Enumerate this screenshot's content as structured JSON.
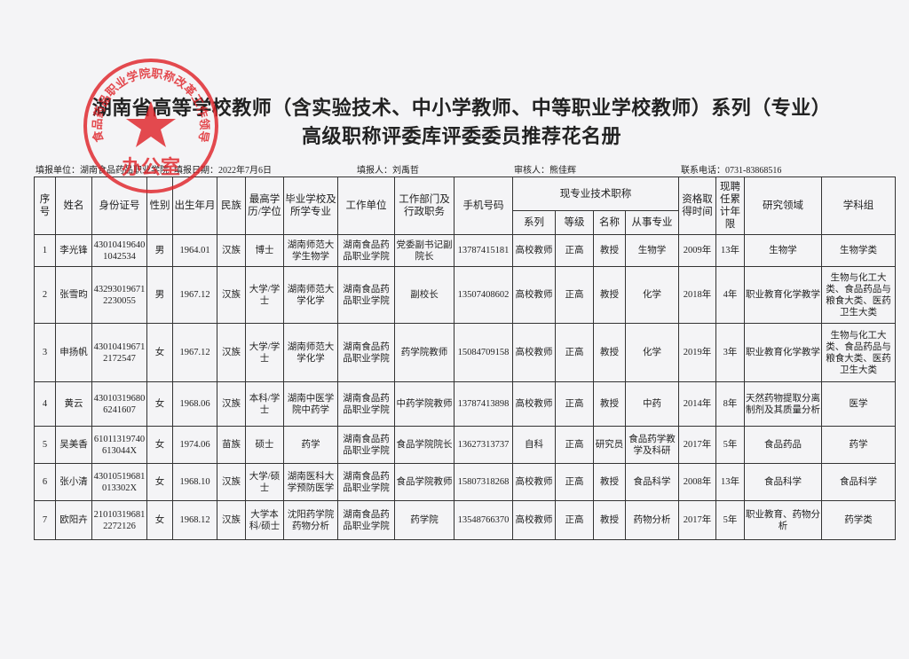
{
  "header": {
    "title_line1": "湖南省高等学校教师（含实验技术、中小学教师、中等职业学校教师）系列（专业）",
    "title_line2": "高级职称评委库评委委员推荐花名册"
  },
  "stamp": {
    "ring": "湖南食品药品职业学院职称改革工作领导小组",
    "center": "办公室"
  },
  "info": {
    "unit": "填报单位：湖南食品药品职业学院",
    "date": "填报日期：2022年7月6日",
    "filler": "填报人：刘禹哲",
    "reviewer": "审核人：熊佳辉",
    "phone": "联系电话：0731-83868516"
  },
  "table": {
    "columns": [
      "序号",
      "姓名",
      "身份证号",
      "性别",
      "出生年月",
      "民族",
      "最高学历/学位",
      "毕业学校及所学专业",
      "工作单位",
      "工作部门及行政职务",
      "手机号码",
      "现专业技术职称",
      "资格取得时间",
      "现聘任累计年限",
      "研究领域",
      "学科组"
    ],
    "sub_columns": [
      "系列",
      "等级",
      "名称",
      "从事专业"
    ],
    "rows": [
      [
        "1",
        "李光锋",
        "430104196401042534",
        "男",
        "1964.01",
        "汉族",
        "博士",
        "湖南师范大学生物学",
        "湖南食品药品职业学院",
        "党委副书记副院长",
        "13787415181",
        "高校教师",
        "正高",
        "教授",
        "生物学",
        "2009年",
        "13年",
        "生物学",
        "生物学类"
      ],
      [
        "2",
        "张雪昀",
        "432930196712230055",
        "男",
        "1967.12",
        "汉族",
        "大学/学士",
        "湖南师范大学化学",
        "湖南食品药品职业学院",
        "副校长",
        "13507408602",
        "高校教师",
        "正高",
        "教授",
        "化学",
        "2018年",
        "4年",
        "职业教育化学教学",
        "生物与化工大类、食品药品与粮食大类、医药卫生大类"
      ],
      [
        "3",
        "申扬帆",
        "430104196712172547",
        "女",
        "1967.12",
        "汉族",
        "大学/学士",
        "湖南师范大学化学",
        "湖南食品药品职业学院",
        "药学院教师",
        "15084709158",
        "高校教师",
        "正高",
        "教授",
        "化学",
        "2019年",
        "3年",
        "职业教育化学教学",
        "生物与化工大类、食品药品与粮食大类、医药卫生大类"
      ],
      [
        "4",
        "黄云",
        "430103196806241607",
        "女",
        "1968.06",
        "汉族",
        "本科/学士",
        "湖南中医学院中药学",
        "湖南食品药品职业学院",
        "中药学院教师",
        "13787413898",
        "高校教师",
        "正高",
        "教授",
        "中药",
        "2014年",
        "8年",
        "天然药物提取分离制剂及其质量分析",
        "医学"
      ],
      [
        "5",
        "吴美香",
        "61011319740613044X",
        "女",
        "1974.06",
        "苗族",
        "硕士",
        "药学",
        "湖南食品药品职业学院",
        "食品学院院长",
        "13627313737",
        "自科",
        "正高",
        "研究员",
        "食品药学教学及科研",
        "2017年",
        "5年",
        "食品药品",
        "药学"
      ],
      [
        "6",
        "张小清",
        "43010519681013302X",
        "女",
        "1968.10",
        "汉族",
        "大学/硕士",
        "湖南医科大学预防医学",
        "湖南食品药品职业学院",
        "食品学院教师",
        "15807318268",
        "高校教师",
        "正高",
        "教授",
        "食品科学",
        "2008年",
        "13年",
        "食品科学",
        "食品科学"
      ],
      [
        "7",
        "欧阳卉",
        "210103196812272126",
        "女",
        "1968.12",
        "汉族",
        "大学本科/硕士",
        "沈阳药学院药物分析",
        "湖南食品药品职业学院",
        "药学院",
        "13548766370",
        "高校教师",
        "正高",
        "教授",
        "药物分析",
        "2017年",
        "5年",
        "职业教育、药物分析",
        "药学类"
      ]
    ]
  }
}
